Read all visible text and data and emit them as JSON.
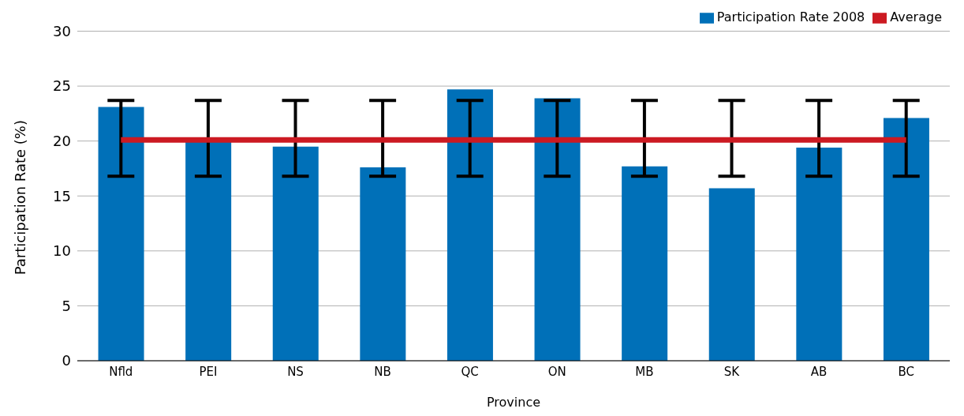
{
  "chart_data": {
    "type": "bar",
    "xlabel": "Province",
    "ylabel": "Participation Rate (%)",
    "categories": [
      "Nfld",
      "PEI",
      "NS",
      "NB",
      "QC",
      "ON",
      "MB",
      "SK",
      "AB",
      "BC"
    ],
    "series": [
      {
        "name": "Participation Rate 2008",
        "color": "#0070b8",
        "values": [
          23.1,
          19.9,
          19.5,
          17.6,
          24.7,
          23.9,
          17.7,
          15.7,
          19.4,
          22.1
        ]
      },
      {
        "name": "Average",
        "type": "line",
        "color": "#cc1a22",
        "marker": "none",
        "values": [
          20.1,
          20.1,
          20.1,
          20.1,
          20.1,
          20.1,
          20.1,
          20.1,
          20.1,
          20.1
        ],
        "errors": [
          [
            16.8,
            23.7
          ],
          [
            16.8,
            23.7
          ],
          [
            16.8,
            23.7
          ],
          [
            16.8,
            23.7
          ],
          [
            16.8,
            23.7
          ],
          [
            16.8,
            23.7
          ],
          [
            16.8,
            23.7
          ],
          [
            16.8,
            23.7
          ],
          [
            16.8,
            23.7
          ],
          [
            16.8,
            23.7
          ]
        ]
      }
    ],
    "ylim": [
      0,
      30
    ],
    "yticks": [
      0,
      5,
      10,
      15,
      20,
      25,
      30
    ],
    "grid": "y",
    "legend": "top right"
  }
}
